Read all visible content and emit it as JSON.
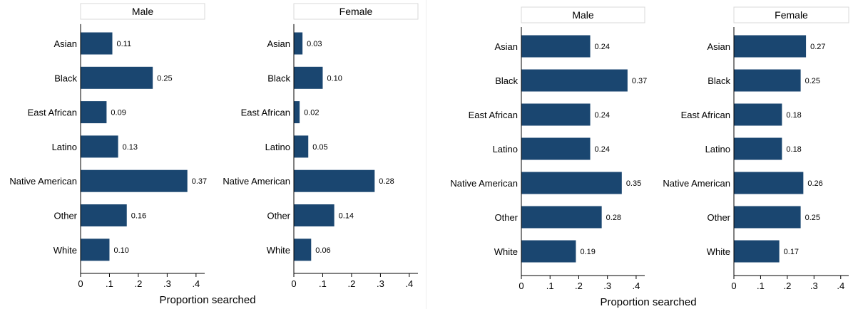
{
  "style": {
    "bar_color": "#1a4670",
    "strip_fill": "#ffffff",
    "strip_border": "#d9d9d9",
    "axis_color": "#000000"
  },
  "chart_data": [
    {
      "type": "bar",
      "orientation": "horizontal",
      "panel": "Male",
      "categories": [
        "Asian",
        "Black",
        "East African",
        "Latino",
        "Native American",
        "Other",
        "White"
      ],
      "values": [
        0.11,
        0.25,
        0.09,
        0.13,
        0.37,
        0.16,
        0.1
      ],
      "data_labels": [
        "0.11",
        "0.25",
        "0.09",
        "0.13",
        "0.37",
        "0.16",
        "0.10"
      ],
      "xlim": [
        0,
        0.43
      ],
      "xticks": [
        0,
        0.1,
        0.2,
        0.3,
        0.4
      ],
      "xtick_labels": [
        "0",
        ".1",
        ".2",
        ".3",
        ".4"
      ],
      "grid": false
    },
    {
      "type": "bar",
      "orientation": "horizontal",
      "panel": "Female",
      "categories": [
        "Asian",
        "Black",
        "East African",
        "Latino",
        "Native American",
        "Other",
        "White"
      ],
      "values": [
        0.03,
        0.1,
        0.02,
        0.05,
        0.28,
        0.14,
        0.06
      ],
      "data_labels": [
        "0.03",
        "0.10",
        "0.02",
        "0.05",
        "0.28",
        "0.14",
        "0.06"
      ],
      "xlim": [
        0,
        0.43
      ],
      "xticks": [
        0,
        0.1,
        0.2,
        0.3,
        0.4
      ],
      "xtick_labels": [
        "0",
        ".1",
        ".2",
        ".3",
        ".4"
      ],
      "grid": false
    },
    {
      "type": "bar",
      "orientation": "horizontal",
      "panel": "Male",
      "categories": [
        "Asian",
        "Black",
        "East African",
        "Latino",
        "Native American",
        "Other",
        "White"
      ],
      "values": [
        0.24,
        0.37,
        0.24,
        0.24,
        0.35,
        0.28,
        0.19
      ],
      "data_labels": [
        "0.24",
        "0.37",
        "0.24",
        "0.24",
        "0.35",
        "0.28",
        "0.19"
      ],
      "xlim": [
        0,
        0.43
      ],
      "xticks": [
        0,
        0.1,
        0.2,
        0.3,
        0.4
      ],
      "xtick_labels": [
        "0",
        ".1",
        ".2",
        ".3",
        ".4"
      ],
      "grid": false
    },
    {
      "type": "bar",
      "orientation": "horizontal",
      "panel": "Female",
      "categories": [
        "Asian",
        "Black",
        "East African",
        "Latino",
        "Native American",
        "Other",
        "White"
      ],
      "values": [
        0.27,
        0.25,
        0.18,
        0.18,
        0.26,
        0.25,
        0.17
      ],
      "data_labels": [
        "0.27",
        "0.25",
        "0.18",
        "0.18",
        "0.26",
        "0.25",
        "0.17"
      ],
      "xlim": [
        0,
        0.43
      ],
      "xticks": [
        0,
        0.1,
        0.2,
        0.3,
        0.4
      ],
      "xtick_labels": [
        "0",
        ".1",
        ".2",
        ".3",
        ".4"
      ],
      "grid": false
    }
  ],
  "figures": [
    {
      "xlabel": "Proportion searched"
    },
    {
      "xlabel": "Proportion searched"
    }
  ]
}
